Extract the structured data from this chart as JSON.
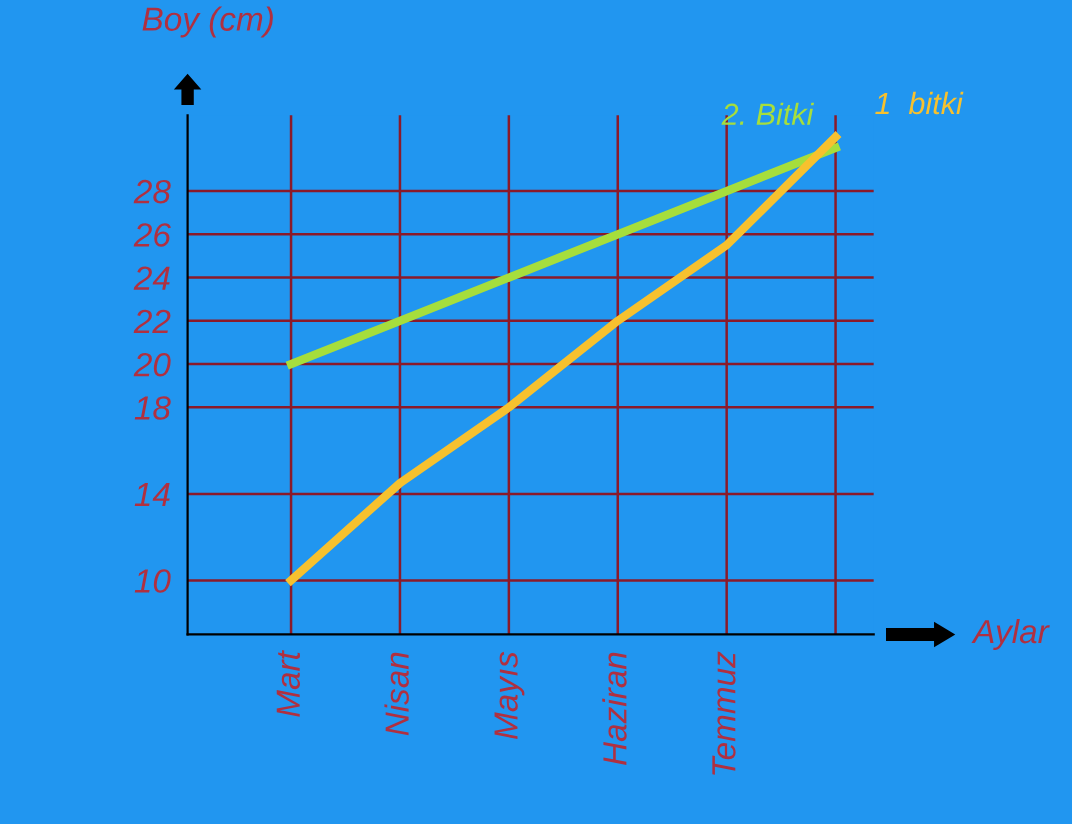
{
  "chart_data": {
    "type": "line",
    "xlabel": "Aylar",
    "ylabel": "Boy (cm)",
    "categories": [
      "Mart",
      "Nisan",
      "Mayıs",
      "Haziran",
      "Temmuz",
      null
    ],
    "series": [
      {
        "name": "2. Bitki",
        "color": "#a6de3c",
        "values": [
          20,
          22,
          24,
          26,
          28,
          30
        ]
      },
      {
        "name": "1  bitki",
        "color": "#f7c12e",
        "values": [
          10,
          14.5,
          18,
          22,
          25.5,
          30.5
        ]
      }
    ],
    "ylim": [
      7.5,
      31.5
    ],
    "yticks": [
      10,
      14,
      18,
      20,
      22,
      24,
      26,
      28
    ],
    "grid": true,
    "legend": false,
    "marker": "none",
    "line_style": "solid"
  }
}
